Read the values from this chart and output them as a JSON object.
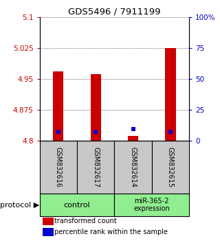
{
  "title": "GDS5496 / 7911199",
  "samples": [
    "GSM832616",
    "GSM832617",
    "GSM832614",
    "GSM832615"
  ],
  "red_values": [
    4.968,
    4.962,
    4.812,
    5.025
  ],
  "blue_values": [
    4.822,
    4.822,
    4.828,
    4.822
  ],
  "red_base": 4.8,
  "ylim": [
    4.8,
    5.1
  ],
  "yticks_left": [
    4.8,
    4.875,
    4.95,
    5.025,
    5.1
  ],
  "yticks_right": [
    0,
    25,
    50,
    75,
    100
  ],
  "ytick_labels_left": [
    "4.8",
    "4.875",
    "4.95",
    "5.025",
    "5.1"
  ],
  "ytick_labels_right": [
    "0",
    "25",
    "50",
    "75",
    "100%"
  ],
  "left_color": "#cc0000",
  "right_color": "#0000cc",
  "bar_color": "#cc0000",
  "dot_color": "#0000cc",
  "bar_width": 0.28,
  "legend_red": "transformed count",
  "legend_blue": "percentile rank within the sample",
  "sample_bg": "#c8c8c8",
  "group_bg": "#90ee90",
  "control_label": "control",
  "mir_label": "miR-365-2\nexpression"
}
